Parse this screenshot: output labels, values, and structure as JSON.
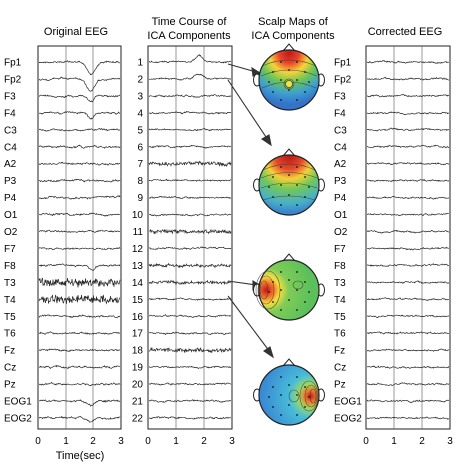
{
  "panels": {
    "original": {
      "title": "Original EEG"
    },
    "components": {
      "title_line1": "Time Course of",
      "title_line2": "ICA Components"
    },
    "maps": {
      "title_line1": "Scalp Maps of",
      "title_line2": "ICA Components"
    },
    "corrected": {
      "title": "Corrected EEG"
    }
  },
  "channels": [
    "Fp1",
    "Fp2",
    "F3",
    "F4",
    "C3",
    "C4",
    "A2",
    "P3",
    "P4",
    "O1",
    "O2",
    "F7",
    "F8",
    "T3",
    "T4",
    "T5",
    "T6",
    "Fz",
    "Cz",
    "Pz",
    "EOG1",
    "EOG2"
  ],
  "components": [
    "1",
    "2",
    "3",
    "4",
    "5",
    "6",
    "7",
    "8",
    "9",
    "10",
    "11",
    "12",
    "13",
    "14",
    "15",
    "16",
    "17",
    "18",
    "19",
    "20",
    "21",
    "22"
  ],
  "time_axis": {
    "ticks": [
      "0",
      "1",
      "2",
      "3"
    ],
    "label": "Time(sec)"
  },
  "scalp_maps": [
    {
      "component": 1,
      "pattern": "frontal"
    },
    {
      "component": 2,
      "pattern": "frontal-broad"
    },
    {
      "component": 14,
      "pattern": "left-temporal"
    },
    {
      "component": 22,
      "pattern": "right-temporal"
    }
  ],
  "colors": {
    "hot": "#d8262a",
    "warm": "#f6e23a",
    "neutral": "#4fbf5a",
    "cool": "#3b7fd0",
    "cold": "#2a3a9e",
    "trace": "#2a2a2a"
  }
}
